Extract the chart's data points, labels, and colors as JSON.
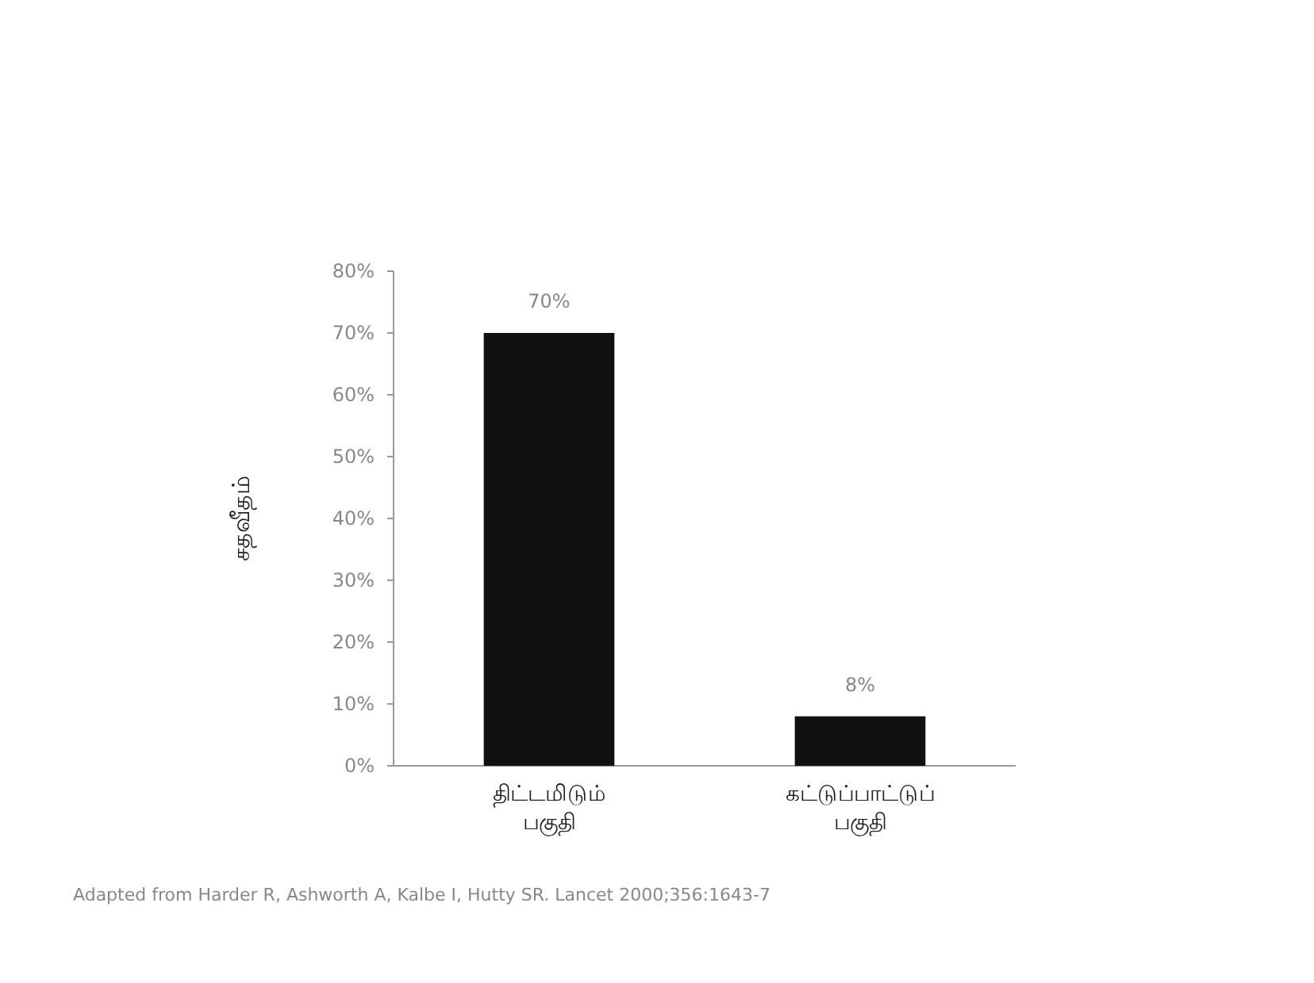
{
  "chart_data": {
    "type": "bar",
    "categories": [
      "திட்டமிடும் பகுதி",
      "கட்டுப்பாட்டுப் பகுதி"
    ],
    "values": [
      70,
      8
    ],
    "color": "#111111",
    "value_labels": [
      "70%",
      "8%"
    ],
    "ylabel": "சதவீதம்",
    "ylim": [
      0,
      80
    ],
    "yticks": [
      {
        "value": 0,
        "label": "0%"
      },
      {
        "value": 10,
        "label": "10%"
      },
      {
        "value": 20,
        "label": "20%"
      },
      {
        "value": 30,
        "label": "30%"
      },
      {
        "value": 40,
        "label": "40%"
      },
      {
        "value": 50,
        "label": "50%"
      },
      {
        "value": 60,
        "label": "60%"
      },
      {
        "value": 70,
        "label": "70%"
      },
      {
        "value": 80,
        "label": "80%"
      }
    ],
    "grid": false,
    "annotations": [
      "Adapted from Harder R, Ashworth A, Kalbe I, Hutty SR. Lancet 2000;356:1643-7"
    ]
  }
}
